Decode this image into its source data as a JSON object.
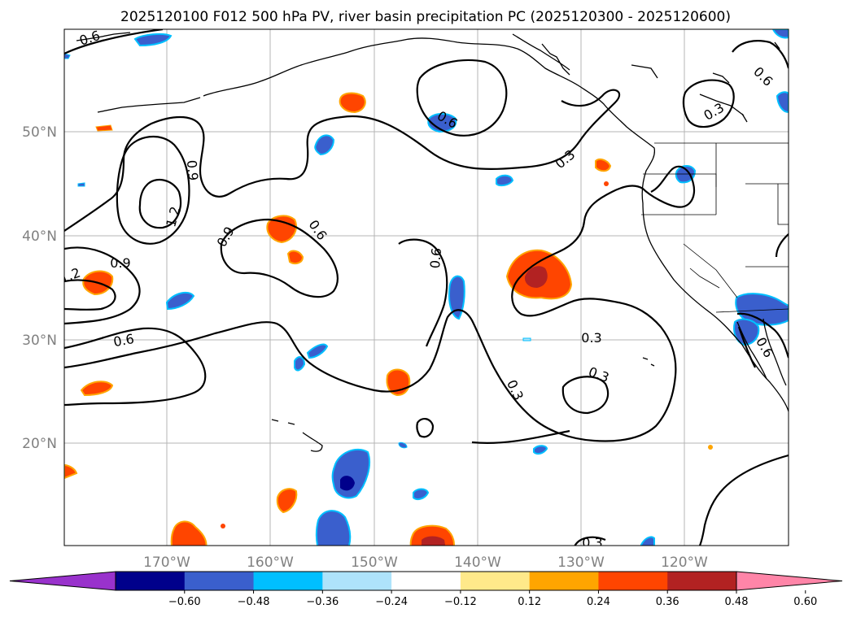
{
  "title": "2025120100 F012 500 hPa PV, river basin precipitation PC (2025120300 - 2025120600)",
  "map": {
    "lat_labels": [
      "50°N",
      "40°N",
      "30°N",
      "20°N"
    ],
    "lon_labels": [
      "170°W",
      "160°W",
      "150°W",
      "140°W",
      "130°W",
      "120°W"
    ],
    "gridlines": true,
    "contour_labels": [
      "0.6",
      "0.6",
      "0.3",
      "0.9",
      "1.2",
      "0.9",
      "0.6",
      "0.9",
      "1.2",
      "0.6",
      "0.6",
      "0.3",
      "0.6",
      "0.3",
      "0.3",
      "0.3",
      "0.6",
      "0.3",
      "0.6",
      "0.3"
    ]
  },
  "colorbar": {
    "ticks": [
      "−0.60",
      "−0.48",
      "−0.36",
      "−0.24",
      "−0.12",
      "0.12",
      "0.24",
      "0.36",
      "0.48",
      "0.60"
    ],
    "colors": [
      "#9932cc",
      "#00008b",
      "#3a5fcd",
      "#00bfff",
      "#aee3fb",
      "#ffffff",
      "#ffe98a",
      "#ffa500",
      "#ff4500",
      "#b22222",
      "#ff85a8"
    ]
  }
}
